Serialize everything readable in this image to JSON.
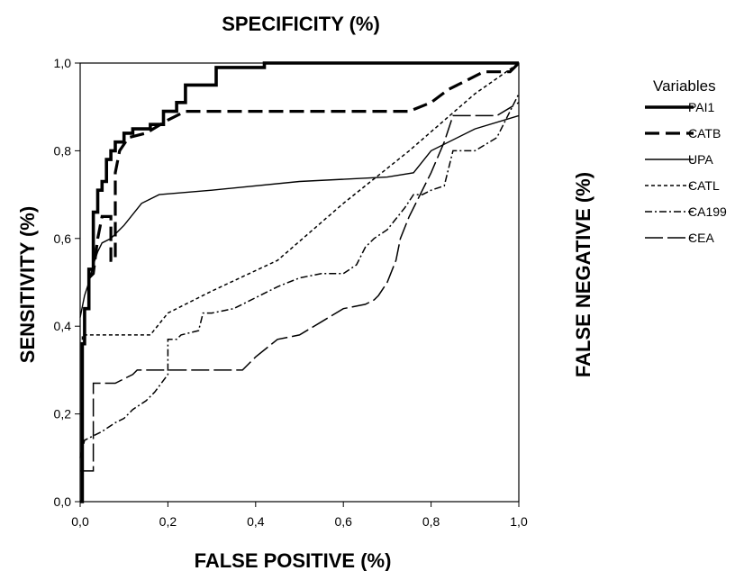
{
  "chart_data": {
    "type": "line",
    "title": "SPECIFICITY (%)",
    "xlabel": "FALSE POSITIVE (%)",
    "ylabel": "SENSITIVITY (%)",
    "y2label": "FALSE NEGATIVE (%)",
    "xlim": [
      0,
      1
    ],
    "ylim": [
      0,
      1
    ],
    "xticks": [
      "0,0",
      "0,2",
      "0,4",
      "0,6",
      "0,8",
      "1,0"
    ],
    "yticks": [
      "0,0",
      "0,2",
      "0,4",
      "0,6",
      "0,8",
      "1,0"
    ],
    "grid": false,
    "legend_title": "Variables",
    "legend_position": "right",
    "series": [
      {
        "name": "PAI1",
        "style": "thick-solid",
        "x": [
          0,
          0.005,
          0.005,
          0.01,
          0.01,
          0.02,
          0.02,
          0.03,
          0.03,
          0.04,
          0.04,
          0.05,
          0.05,
          0.06,
          0.06,
          0.07,
          0.07,
          0.08,
          0.08,
          0.1,
          0.1,
          0.12,
          0.12,
          0.16,
          0.16,
          0.19,
          0.19,
          0.22,
          0.22,
          0.24,
          0.24,
          0.31,
          0.31,
          0.42,
          0.42,
          1.0
        ],
        "y": [
          0,
          0,
          0.36,
          0.36,
          0.44,
          0.44,
          0.53,
          0.53,
          0.66,
          0.66,
          0.71,
          0.71,
          0.73,
          0.73,
          0.78,
          0.78,
          0.8,
          0.8,
          0.82,
          0.82,
          0.84,
          0.84,
          0.85,
          0.85,
          0.86,
          0.86,
          0.89,
          0.89,
          0.91,
          0.91,
          0.95,
          0.95,
          0.99,
          0.99,
          1.0,
          1.0
        ]
      },
      {
        "name": "CATB",
        "style": "thick-dash",
        "x": [
          0.02,
          0.03,
          0.04,
          0.05,
          0.07,
          0.07,
          0.08,
          0.08,
          0.09,
          0.11,
          0.15,
          0.2,
          0.24,
          0.35,
          0.5,
          0.6,
          0.75,
          0.8,
          0.84,
          0.88,
          0.92,
          0.95,
          0.98,
          1.0
        ],
        "y": [
          0.51,
          0.52,
          0.6,
          0.65,
          0.65,
          0.55,
          0.55,
          0.75,
          0.8,
          0.83,
          0.84,
          0.87,
          0.89,
          0.89,
          0.89,
          0.89,
          0.89,
          0.91,
          0.94,
          0.96,
          0.98,
          0.98,
          0.98,
          1.0
        ]
      },
      {
        "name": "UPA",
        "style": "thin-solid",
        "x": [
          0,
          0.01,
          0.02,
          0.03,
          0.04,
          0.05,
          0.07,
          0.1,
          0.14,
          0.18,
          0.3,
          0.5,
          0.7,
          0.76,
          0.8,
          0.9,
          1.0
        ],
        "y": [
          0.42,
          0.47,
          0.5,
          0.54,
          0.57,
          0.59,
          0.6,
          0.63,
          0.68,
          0.7,
          0.71,
          0.73,
          0.74,
          0.75,
          0.8,
          0.85,
          0.88
        ]
      },
      {
        "name": "CATL",
        "style": "short-dash",
        "x": [
          0,
          0.005,
          0.005,
          0.16,
          0.2,
          0.3,
          0.45,
          0.6,
          0.75,
          0.9,
          1.0
        ],
        "y": [
          0,
          0,
          0.38,
          0.38,
          0.43,
          0.48,
          0.55,
          0.68,
          0.8,
          0.93,
          1.0
        ]
      },
      {
        "name": "CA199",
        "style": "dash-dot",
        "x": [
          0,
          0.01,
          0.03,
          0.05,
          0.08,
          0.1,
          0.12,
          0.15,
          0.17,
          0.2,
          0.2,
          0.22,
          0.23,
          0.27,
          0.28,
          0.3,
          0.35,
          0.45,
          0.5,
          0.55,
          0.6,
          0.63,
          0.65,
          0.67,
          0.7,
          0.74,
          0.76,
          0.78,
          0.8,
          0.83,
          0.85,
          0.87,
          0.9,
          0.95,
          1.0
        ],
        "y": [
          0.1,
          0.14,
          0.15,
          0.16,
          0.18,
          0.19,
          0.21,
          0.23,
          0.25,
          0.29,
          0.37,
          0.37,
          0.38,
          0.39,
          0.43,
          0.43,
          0.44,
          0.49,
          0.51,
          0.52,
          0.52,
          0.54,
          0.58,
          0.6,
          0.62,
          0.67,
          0.7,
          0.7,
          0.71,
          0.72,
          0.8,
          0.8,
          0.8,
          0.83,
          0.93
        ]
      },
      {
        "name": "CEA",
        "style": "long-dash",
        "x": [
          0,
          0.03,
          0.03,
          0.08,
          0.1,
          0.12,
          0.13,
          0.37,
          0.4,
          0.45,
          0.5,
          0.55,
          0.6,
          0.65,
          0.67,
          0.68,
          0.7,
          0.72,
          0.73,
          0.75,
          0.8,
          0.83,
          0.85,
          0.9,
          0.95,
          1.0
        ],
        "y": [
          0.07,
          0.07,
          0.27,
          0.27,
          0.28,
          0.29,
          0.3,
          0.3,
          0.33,
          0.37,
          0.38,
          0.41,
          0.44,
          0.45,
          0.46,
          0.47,
          0.5,
          0.55,
          0.6,
          0.65,
          0.75,
          0.82,
          0.88,
          0.88,
          0.88,
          0.91
        ]
      }
    ]
  }
}
